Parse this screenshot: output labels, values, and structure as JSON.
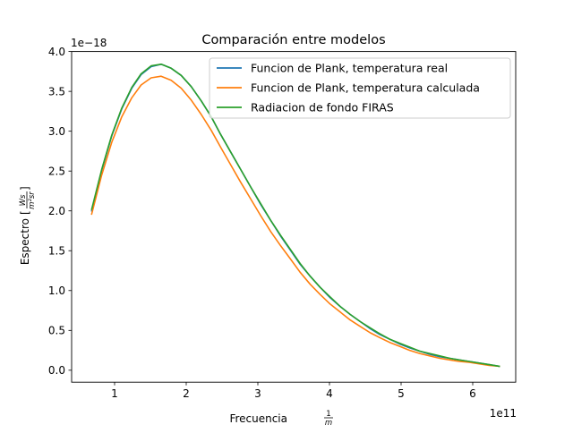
{
  "chart_data": {
    "type": "line",
    "title": "Comparación entre modelos",
    "xlabel": "Frecuencia",
    "xlabel_unit_num": "1",
    "xlabel_unit_den": "m",
    "ylabel": "Espectro",
    "ylabel_unit_num": "Ws",
    "ylabel_unit_den": "m²sr",
    "x_offset_label": "1e11",
    "y_offset_label": "1e−18",
    "x_scale": 100000000000.0,
    "y_scale": 1e-18,
    "xlim": [
      0.4,
      6.6
    ],
    "ylim": [
      -0.15,
      4.0
    ],
    "x_ticks": [
      1,
      2,
      3,
      4,
      5,
      6
    ],
    "y_ticks": [
      0.0,
      0.5,
      1.0,
      1.5,
      2.0,
      2.5,
      3.0,
      3.5,
      4.0
    ],
    "x_tick_labels": [
      "1",
      "2",
      "3",
      "4",
      "5",
      "6"
    ],
    "y_tick_labels": [
      "0.0",
      "0.5",
      "1.0",
      "1.5",
      "2.0",
      "2.5",
      "3.0",
      "3.5",
      "4.0"
    ],
    "grid": false,
    "legend_position": "top-right",
    "x": [
      0.68,
      0.82,
      0.96,
      1.1,
      1.24,
      1.37,
      1.51,
      1.65,
      1.79,
      1.93,
      2.07,
      2.21,
      2.35,
      2.48,
      2.62,
      2.76,
      2.9,
      3.04,
      3.18,
      3.32,
      3.46,
      3.59,
      3.73,
      3.87,
      4.01,
      4.15,
      4.29,
      4.43,
      4.57,
      4.7,
      4.84,
      4.98,
      5.12,
      5.26,
      5.4,
      5.54,
      5.68,
      5.81,
      5.95,
      6.09,
      6.23,
      6.37
    ],
    "series": [
      {
        "name": "Funcion de Plank, temperatura real",
        "color": "#1f77b4",
        "values": [
          2.0,
          2.51,
          2.94,
          3.28,
          3.54,
          3.71,
          3.81,
          3.84,
          3.79,
          3.7,
          3.56,
          3.38,
          3.18,
          2.96,
          2.74,
          2.52,
          2.3,
          2.08,
          1.88,
          1.68,
          1.5,
          1.33,
          1.18,
          1.04,
          0.91,
          0.8,
          0.7,
          0.61,
          0.52,
          0.45,
          0.39,
          0.33,
          0.28,
          0.24,
          0.2,
          0.17,
          0.15,
          0.13,
          0.11,
          0.09,
          0.07,
          0.05
        ]
      },
      {
        "name": "Funcion de Plank, temperatura calculada",
        "color": "#ff7f0e",
        "values": [
          1.96,
          2.45,
          2.86,
          3.18,
          3.42,
          3.58,
          3.67,
          3.69,
          3.64,
          3.54,
          3.39,
          3.21,
          3.01,
          2.8,
          2.58,
          2.36,
          2.15,
          1.94,
          1.74,
          1.56,
          1.39,
          1.23,
          1.08,
          0.95,
          0.83,
          0.73,
          0.63,
          0.55,
          0.47,
          0.41,
          0.35,
          0.3,
          0.25,
          0.21,
          0.18,
          0.15,
          0.13,
          0.11,
          0.1,
          0.08,
          0.06,
          0.05
        ]
      },
      {
        "name": "Radiacion de fondo FIRAS",
        "color": "#2ca02c",
        "values": [
          2.02,
          2.52,
          2.95,
          3.29,
          3.55,
          3.72,
          3.82,
          3.84,
          3.79,
          3.7,
          3.56,
          3.38,
          3.18,
          2.96,
          2.74,
          2.52,
          2.3,
          2.09,
          1.88,
          1.69,
          1.51,
          1.34,
          1.18,
          1.04,
          0.92,
          0.8,
          0.7,
          0.61,
          0.53,
          0.46,
          0.39,
          0.34,
          0.29,
          0.24,
          0.21,
          0.18,
          0.15,
          0.13,
          0.11,
          0.09,
          0.07,
          0.05
        ]
      }
    ]
  }
}
